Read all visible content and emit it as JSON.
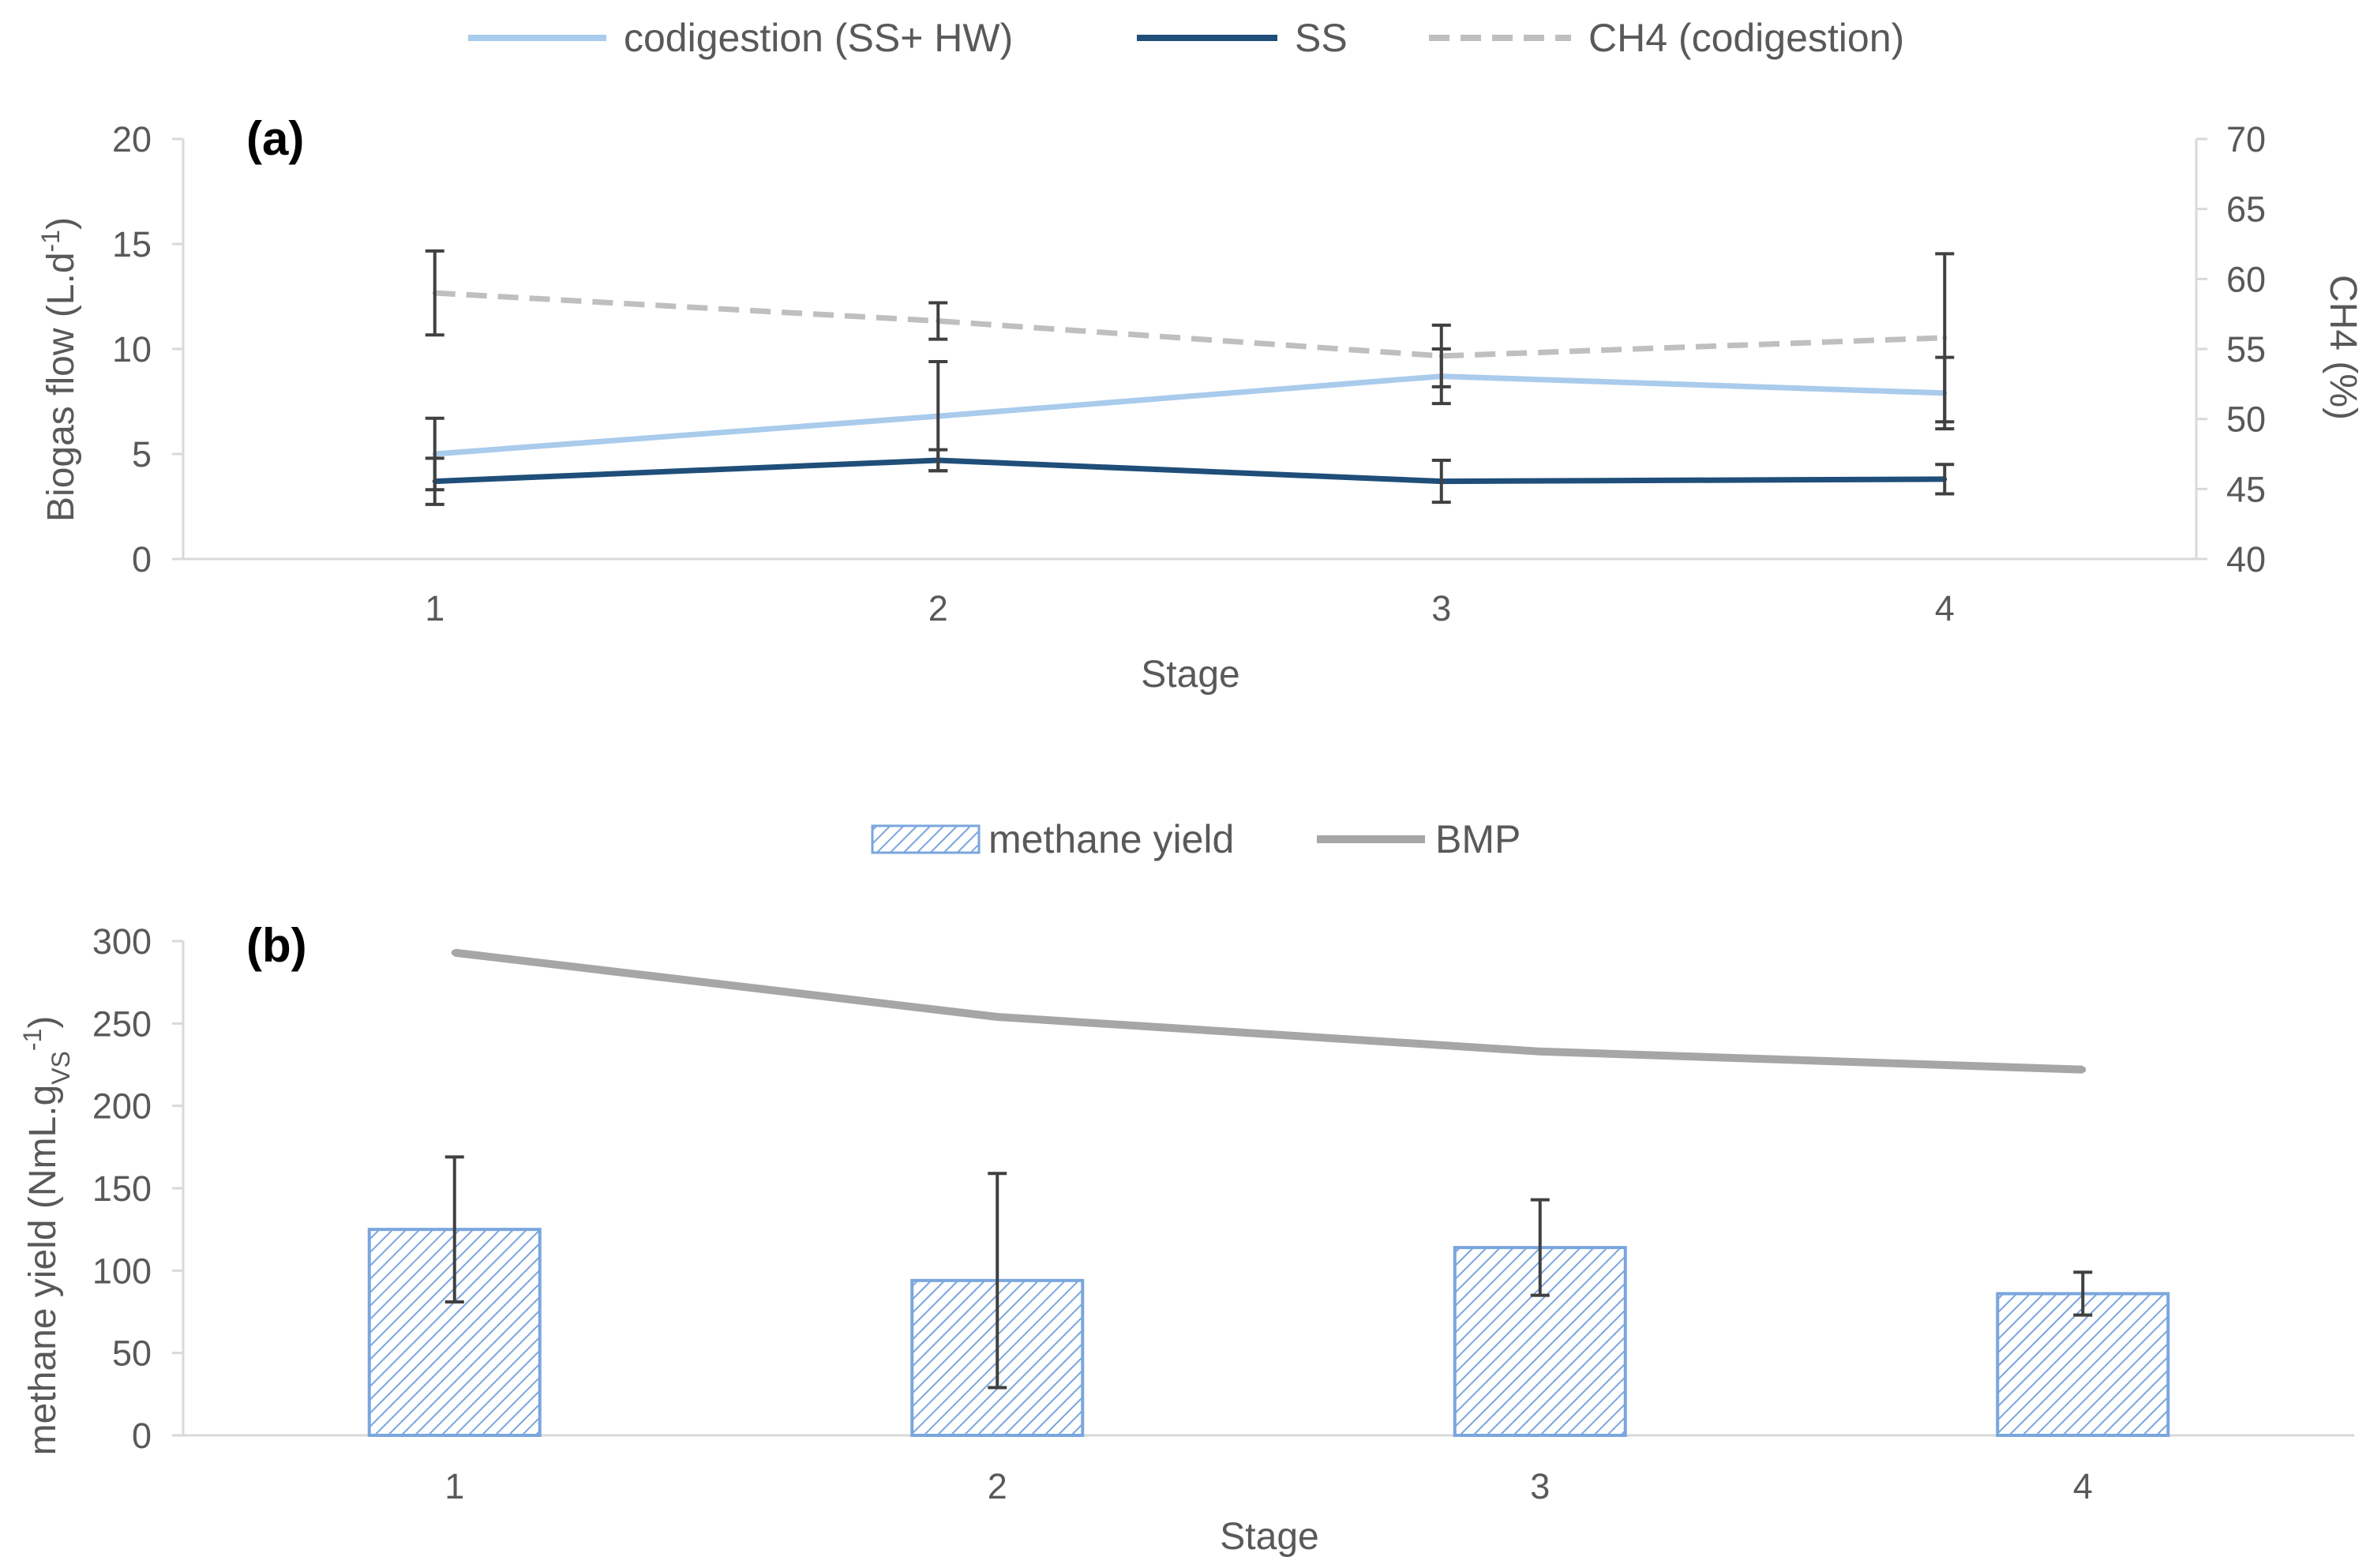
{
  "chart_data": [
    {
      "panel": "(a)",
      "type": "line",
      "categories": [
        "1",
        "2",
        "3",
        "4"
      ],
      "xlabel": "Stage",
      "ylabel": "Biogas flow (L.d-1)",
      "ylabel_parts": {
        "main": "Biogas flow (L.d",
        "sup": "-1",
        "end": ")"
      },
      "ylim": [
        0,
        20
      ],
      "yticks": [
        "0",
        "5",
        "10",
        "15",
        "20"
      ],
      "y2label": "CH4 (%)",
      "y2lim": [
        40,
        70
      ],
      "y2ticks": [
        "40",
        "45",
        "50",
        "55",
        "60",
        "65",
        "70"
      ],
      "legend_position": "top",
      "series": [
        {
          "name": "codigestion (SS+ HW)",
          "axis": "left",
          "style": "solid",
          "color": "#a9cbec",
          "values": [
            5.0,
            6.8,
            8.7,
            7.9
          ],
          "err": [
            1.7,
            2.6,
            1.3,
            1.7
          ]
        },
        {
          "name": "SS",
          "axis": "left",
          "style": "solid",
          "color": "#1f4e79",
          "values": [
            3.7,
            4.7,
            3.7,
            3.8
          ],
          "err": [
            1.1,
            0.5,
            1.0,
            0.7
          ]
        },
        {
          "name": "CH4 (codigestion)",
          "axis": "right",
          "style": "dashed",
          "color": "#bfbfbf",
          "values": [
            59.0,
            57.0,
            54.5,
            55.8
          ],
          "err": [
            3.0,
            1.3,
            2.2,
            6.0
          ]
        }
      ]
    },
    {
      "panel": "(b)",
      "type": "bar",
      "categories": [
        "1",
        "2",
        "3",
        "4"
      ],
      "xlabel": "Stage",
      "ylabel": "methane yield (NmL.gVS-1)",
      "ylabel_parts": {
        "main": "methane yield (NmL.g",
        "sub": "VS",
        "sup": "-1",
        "end": ")"
      },
      "ylim": [
        0,
        300
      ],
      "yticks": [
        "0",
        "50",
        "100",
        "150",
        "200",
        "250",
        "300"
      ],
      "legend_position": "top",
      "series": [
        {
          "name": "methane yield",
          "kind": "bar",
          "pattern": "hatched",
          "color": "#7aa6de",
          "values": [
            125,
            94,
            114,
            86
          ],
          "err": [
            44,
            65,
            29,
            13
          ]
        },
        {
          "name": "BMP",
          "kind": "line",
          "color": "#a6a6a6",
          "values": [
            293,
            254,
            233,
            222
          ]
        }
      ]
    }
  ]
}
